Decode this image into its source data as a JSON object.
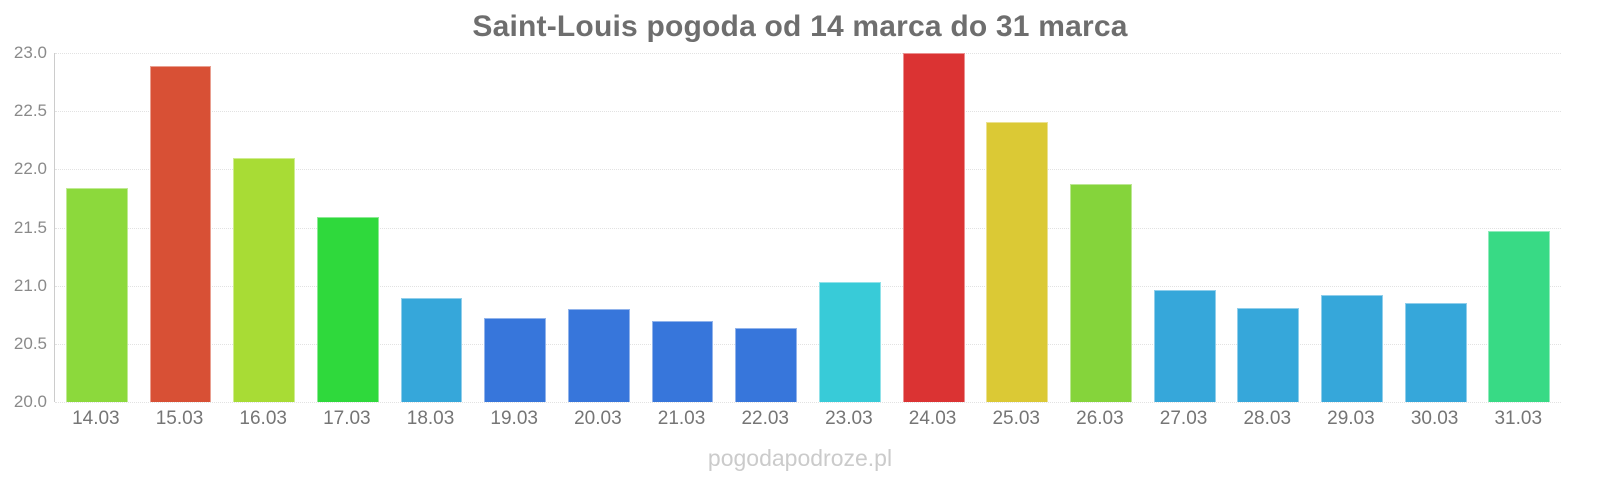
{
  "page": {
    "title": "Saint-Louis pogoda od 14 marca do 31 marca",
    "watermark": "pogodapodroze.pl"
  },
  "chart_data": {
    "type": "bar",
    "title": "Saint-Louis pogoda od 14 marca do 31 marca",
    "categories": [
      "14.03",
      "15.03",
      "16.03",
      "17.03",
      "18.03",
      "19.03",
      "20.03",
      "21.03",
      "22.03",
      "23.03",
      "24.03",
      "25.03",
      "26.03",
      "27.03",
      "28.03",
      "29.03",
      "30.03",
      "31.03"
    ],
    "values": [
      21.84,
      22.89,
      22.1,
      21.59,
      20.89,
      20.72,
      20.8,
      20.7,
      20.64,
      21.03,
      23.0,
      22.41,
      21.87,
      20.96,
      20.81,
      20.92,
      20.85,
      21.47
    ],
    "bar_colors": [
      "#8CD93C",
      "#D85035",
      "#A8DC35",
      "#2FD93C",
      "#36A7DA",
      "#3776DB",
      "#3776DB",
      "#3776DB",
      "#3776DB",
      "#38CBD8",
      "#DB3333",
      "#DBC935",
      "#85D43B",
      "#36A7DA",
      "#36A7DA",
      "#36A7DA",
      "#36A7DA",
      "#38DA85"
    ],
    "xlabel": "",
    "ylabel": "",
    "ylim": [
      20.0,
      23.0
    ],
    "ytick_step": 0.5,
    "ytick_labels": [
      "20.0",
      "20.5",
      "21.0",
      "21.5",
      "22.0",
      "22.5",
      "23.0"
    ],
    "grid": "horizontal dotted",
    "legend": "none",
    "axis_color": "#cccccc",
    "grid_color": "#e2e2e2",
    "tick_label_color": "#8a8a8a",
    "title_color": "#6e6e6e",
    "watermark_color": "#cbcbcb",
    "background_color": "#ffffff"
  }
}
